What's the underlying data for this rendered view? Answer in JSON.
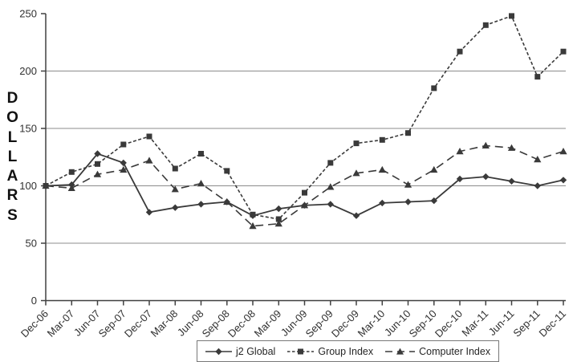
{
  "page": {
    "background": "#ffffff"
  },
  "chart_data": {
    "type": "line",
    "title": "",
    "xlabel": "",
    "ylabel": "DOLLARS",
    "ylim": [
      0,
      250
    ],
    "ytick_step": 50,
    "ytick_labels": [
      "0",
      "50",
      "100",
      "150",
      "200",
      "250"
    ],
    "grid_values": [
      50,
      100,
      150,
      200
    ],
    "grid": "horizontal-only",
    "legend_position": "bottom-center",
    "axis_color": "#404040",
    "gridline_color": "#8c8c8c",
    "categories": [
      "Dec-06",
      "Mar-07",
      "Jun-07",
      "Sep-07",
      "Dec-07",
      "Mar-08",
      "Jun-08",
      "Sep-08",
      "Dec-08",
      "Mar-09",
      "Jun-09",
      "Sep-09",
      "Dec-09",
      "Mar-10",
      "Jun-10",
      "Sep-10",
      "Dec-10",
      "Mar-11",
      "Jun-11",
      "Sep-11",
      "Dec-11"
    ],
    "series": [
      {
        "name": "j2 Global",
        "marker": "diamond",
        "line_style": "solid",
        "color": "#3a3a3a",
        "values": [
          100,
          101,
          128,
          120,
          77,
          81,
          84,
          86,
          74,
          80,
          83,
          84,
          74,
          85,
          86,
          87,
          106,
          108,
          104,
          100,
          105
        ]
      },
      {
        "name": "Group Index",
        "marker": "square",
        "line_style": "dash",
        "color": "#3a3a3a",
        "values": [
          100,
          112,
          119,
          136,
          143,
          115,
          128,
          113,
          75,
          71,
          94,
          120,
          137,
          140,
          146,
          185,
          217,
          240,
          248,
          195,
          217
        ]
      },
      {
        "name": "Computer Index",
        "marker": "triangle",
        "line_style": "longdash",
        "color": "#3a3a3a",
        "values": [
          100,
          98,
          110,
          114,
          122,
          97,
          102,
          86,
          65,
          67,
          83,
          99,
          111,
          114,
          101,
          114,
          130,
          135,
          133,
          123,
          130
        ]
      }
    ]
  }
}
